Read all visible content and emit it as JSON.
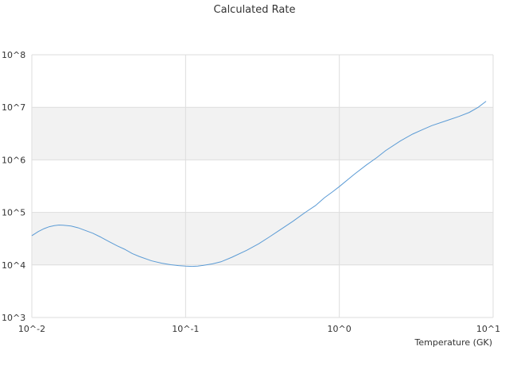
{
  "chart_data": {
    "type": "line",
    "title": "Calculated Rate",
    "xlabel": "Temperature (GK)",
    "ylabel": "",
    "x_scale": "log",
    "y_scale": "log",
    "xlim": [
      0.01,
      10
    ],
    "ylim": [
      1000,
      100000000
    ],
    "x_ticks": [
      {
        "value": 0.01,
        "label": "10^-2"
      },
      {
        "value": 0.1,
        "label": "10^-1"
      },
      {
        "value": 1,
        "label": "10^0"
      },
      {
        "value": 10,
        "label": "10^1"
      }
    ],
    "y_ticks": [
      {
        "value": 1000,
        "label": "10^3"
      },
      {
        "value": 10000,
        "label": "10^4"
      },
      {
        "value": 100000,
        "label": "10^5"
      },
      {
        "value": 1000000,
        "label": "10^6"
      },
      {
        "value": 10000000,
        "label": "10^7"
      },
      {
        "value": 100000000,
        "label": "10^8"
      }
    ],
    "grid": true,
    "alternating_bands": true,
    "band_color": "#f2f2f2",
    "grid_color": "#dddddd",
    "series": [
      {
        "color": "#5b9bd5",
        "x": [
          0.01,
          0.011,
          0.012,
          0.013,
          0.014,
          0.015,
          0.016,
          0.018,
          0.02,
          0.022,
          0.025,
          0.028,
          0.032,
          0.036,
          0.04,
          0.045,
          0.05,
          0.06,
          0.07,
          0.08,
          0.09,
          0.1,
          0.11,
          0.12,
          0.13,
          0.15,
          0.17,
          0.2,
          0.25,
          0.3,
          0.35,
          0.4,
          0.5,
          0.6,
          0.7,
          0.8,
          0.9,
          1.0,
          1.25,
          1.5,
          1.75,
          2.0,
          2.5,
          3.0,
          3.5,
          4.0,
          5.0,
          6.0,
          7.0,
          8.0,
          9.0
        ],
        "y": [
          36000,
          43000,
          49000,
          53500,
          56000,
          57500,
          57000,
          55000,
          51000,
          46000,
          40000,
          34000,
          27500,
          23000,
          20000,
          16500,
          14500,
          12000,
          10800,
          10100,
          9700,
          9500,
          9400,
          9500,
          9800,
          10500,
          11500,
          14000,
          19000,
          25500,
          34000,
          44000,
          68000,
          100000,
          135000,
          190000,
          245000,
          310000,
          530000,
          800000,
          1100000,
          1500000,
          2300000,
          3100000,
          3800000,
          4500000,
          5600000,
          6700000,
          8000000,
          10000000,
          13000000
        ]
      }
    ]
  }
}
